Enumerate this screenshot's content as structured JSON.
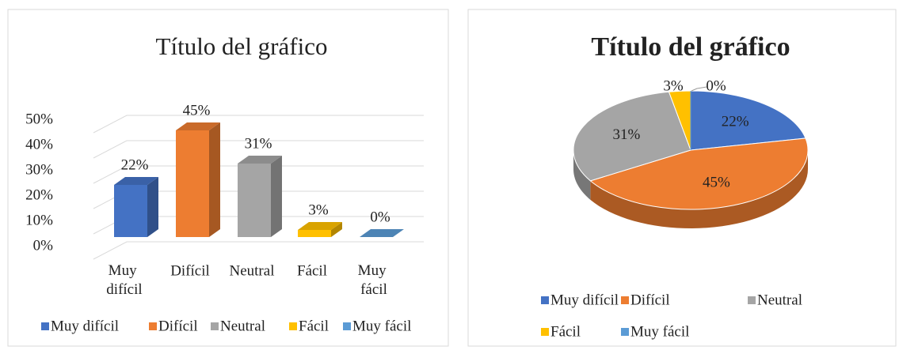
{
  "chart_data": [
    {
      "type": "bar3d",
      "title": "Título del gráfico",
      "categories": [
        "Muy difícil",
        "Difícil",
        "Neutral",
        "Fácil",
        "Muy fácil"
      ],
      "values": [
        22,
        45,
        31,
        3,
        0
      ],
      "value_labels": [
        "22%",
        "45%",
        "31%",
        "3%",
        "0%"
      ],
      "colors": [
        "#4472c4",
        "#ed7d31",
        "#a5a5a5",
        "#ffc000",
        "#5b9bd5"
      ],
      "ylim": [
        0,
        50
      ],
      "yticks": [
        {
          "value": 0,
          "label": "0%"
        },
        {
          "value": 10,
          "label": "10%"
        },
        {
          "value": 20,
          "label": "20%"
        },
        {
          "value": 30,
          "label": "30%"
        },
        {
          "value": 40,
          "label": "40%"
        },
        {
          "value": 50,
          "label": "50%"
        }
      ],
      "grid": true,
      "legend": "bottom"
    },
    {
      "type": "pie3d",
      "title": "Título del gráfico",
      "categories": [
        "Muy difícil",
        "Difícil",
        "Neutral",
        "Fácil",
        "Muy fácil"
      ],
      "values": [
        22,
        45,
        31,
        3,
        0
      ],
      "value_labels": [
        "22%",
        "45%",
        "31%",
        "3%",
        "0%"
      ],
      "colors": [
        "#4472c4",
        "#ed7d31",
        "#a5a5a5",
        "#ffc000",
        "#5b9bd5"
      ],
      "legend": "bottom"
    }
  ]
}
